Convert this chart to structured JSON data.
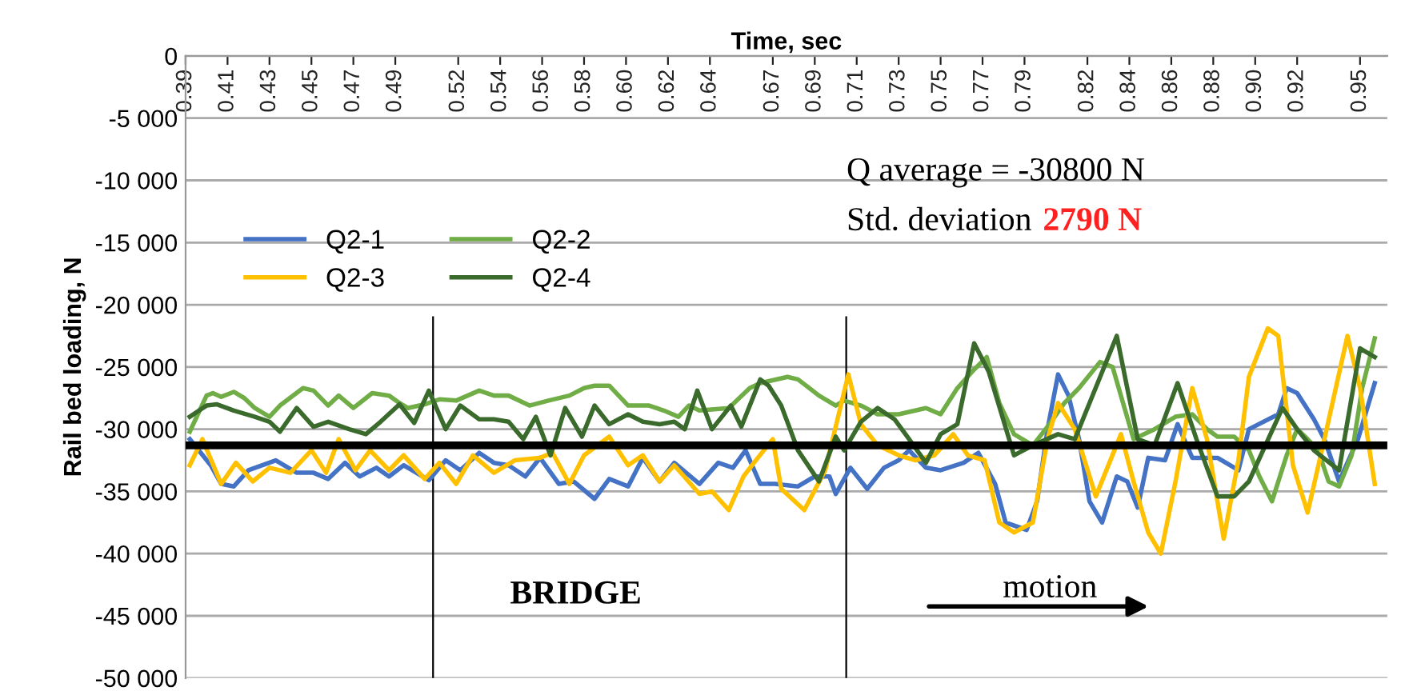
{
  "chart_data": {
    "type": "line",
    "xlabel": "Time, sec",
    "ylabel": "Rail bed loading, N",
    "xlim": [
      0.39,
      0.963
    ],
    "xticks": [
      0.39,
      0.41,
      0.43,
      0.45,
      0.47,
      0.49,
      0.52,
      0.54,
      0.56,
      0.58,
      {
        "value": 0.6,
        "label": "0.60"
      },
      0.62,
      0.64,
      0.67,
      0.69,
      0.71,
      0.73,
      0.75,
      0.77,
      0.79,
      0.82,
      0.84,
      0.86,
      0.88,
      {
        "value": 0.9,
        "label": "0.90"
      },
      0.92,
      0.95
    ],
    "ylim": [
      -50000,
      0
    ],
    "yticks": [
      0,
      {
        "value": -5000,
        "label": "-5 000"
      },
      {
        "value": -10000,
        "label": "-10 000"
      },
      {
        "value": -15000,
        "label": "-15 000"
      },
      {
        "value": -20000,
        "label": "-20 000"
      },
      {
        "value": -25000,
        "label": "-25 000"
      },
      {
        "value": -30000,
        "label": "-30 000"
      },
      {
        "value": -35000,
        "label": "-35 000"
      },
      {
        "value": -40000,
        "label": "-40 000"
      },
      {
        "value": -45000,
        "label": "-45 000"
      },
      {
        "value": -50000,
        "label": "-50 000"
      }
    ],
    "grid": "y",
    "legend": "top left",
    "series": [
      {
        "name": "Q2-1",
        "color": "#4472c4",
        "x": [
          0.392,
          0.402,
          0.407,
          0.413,
          0.42,
          0.433,
          0.443,
          0.451,
          0.458,
          0.466,
          0.473,
          0.481,
          0.487,
          0.494,
          0.506,
          0.514,
          0.521,
          0.53,
          0.537,
          0.544,
          0.552,
          0.559,
          0.568,
          0.575,
          0.585,
          0.592,
          0.601,
          0.608,
          0.616,
          0.623,
          0.635,
          0.644,
          0.651,
          0.657,
          0.664,
          0.671,
          0.682,
          0.69,
          0.697,
          0.7,
          0.707,
          0.715,
          0.723,
          0.73,
          0.735,
          0.743,
          0.75,
          0.761,
          0.768,
          0.776,
          0.781,
          0.791,
          0.796,
          0.801,
          0.806,
          0.811,
          0.816,
          0.821,
          0.827,
          0.834,
          0.839,
          0.844,
          0.849,
          0.857,
          0.863,
          0.87,
          0.882,
          0.892,
          0.897,
          0.911,
          0.915,
          0.92,
          0.928,
          0.933,
          0.94,
          0.949,
          0.957
        ],
        "values": [
          -30800,
          -32900,
          -34400,
          -34600,
          -33300,
          -32500,
          -33500,
          -33500,
          -34000,
          -32700,
          -33800,
          -33100,
          -33800,
          -32900,
          -34100,
          -32500,
          -33300,
          -31900,
          -32700,
          -32900,
          -33800,
          -32300,
          -34400,
          -34200,
          -35600,
          -34000,
          -34600,
          -32300,
          -34200,
          -32700,
          -34400,
          -32700,
          -33100,
          -31700,
          -34400,
          -34400,
          -34600,
          -33800,
          -33800,
          -35200,
          -33100,
          -34800,
          -33100,
          -32500,
          -31700,
          -33100,
          -33300,
          -32700,
          -31900,
          -34400,
          -37500,
          -38100,
          -35800,
          -30000,
          -25600,
          -27300,
          -30800,
          -35800,
          -37500,
          -33800,
          -34200,
          -36300,
          -32300,
          -32500,
          -29600,
          -32300,
          -32300,
          -33300,
          -30000,
          -28800,
          -26700,
          -27100,
          -29200,
          -30800,
          -34200,
          -30800,
          -26300
        ]
      },
      {
        "name": "Q2-2",
        "color": "#70ad47",
        "x": [
          0.392,
          0.4,
          0.403,
          0.407,
          0.413,
          0.418,
          0.423,
          0.43,
          0.435,
          0.446,
          0.451,
          0.458,
          0.463,
          0.47,
          0.479,
          0.487,
          0.492,
          0.496,
          0.504,
          0.511,
          0.519,
          0.53,
          0.537,
          0.544,
          0.554,
          0.563,
          0.573,
          0.58,
          0.585,
          0.592,
          0.601,
          0.611,
          0.618,
          0.625,
          0.63,
          0.635,
          0.649,
          0.659,
          0.664,
          0.677,
          0.682,
          0.692,
          0.7,
          0.704,
          0.712,
          0.72,
          0.73,
          0.743,
          0.75,
          0.758,
          0.766,
          0.772,
          0.778,
          0.785,
          0.794,
          0.801,
          0.809,
          0.816,
          0.826,
          0.832,
          0.837,
          0.842,
          0.852,
          0.862,
          0.87,
          0.877,
          0.882,
          0.89,
          0.897,
          0.902,
          0.908,
          0.915,
          0.92,
          0.925,
          0.93,
          0.935,
          0.94,
          0.946,
          0.951,
          0.957
        ],
        "values": [
          -30200,
          -27300,
          -27100,
          -27400,
          -27000,
          -27500,
          -28300,
          -29000,
          -28100,
          -26700,
          -26900,
          -28100,
          -27300,
          -28300,
          -27100,
          -27300,
          -27900,
          -28300,
          -28000,
          -27600,
          -27700,
          -26900,
          -27300,
          -27300,
          -28100,
          -27700,
          -27300,
          -26700,
          -26500,
          -26500,
          -28100,
          -28100,
          -28500,
          -29000,
          -28100,
          -28500,
          -28300,
          -26700,
          -26300,
          -25800,
          -26000,
          -27300,
          -28100,
          -27700,
          -28100,
          -28800,
          -28800,
          -28300,
          -28800,
          -26700,
          -25200,
          -24200,
          -27900,
          -30400,
          -31300,
          -29800,
          -27900,
          -26700,
          -24600,
          -25000,
          -27900,
          -30800,
          -30000,
          -29000,
          -28800,
          -30000,
          -30600,
          -30600,
          -31700,
          -33800,
          -35800,
          -32100,
          -30000,
          -30800,
          -31700,
          -34200,
          -34600,
          -32100,
          -26700,
          -22700
        ]
      },
      {
        "name": "Q2-3",
        "color": "#ffc000",
        "x": [
          0.392,
          0.398,
          0.407,
          0.414,
          0.422,
          0.43,
          0.44,
          0.45,
          0.457,
          0.463,
          0.471,
          0.478,
          0.487,
          0.494,
          0.504,
          0.511,
          0.519,
          0.527,
          0.537,
          0.547,
          0.559,
          0.565,
          0.573,
          0.58,
          0.592,
          0.601,
          0.608,
          0.616,
          0.623,
          0.635,
          0.641,
          0.649,
          0.656,
          0.661,
          0.67,
          0.674,
          0.685,
          0.695,
          0.706,
          0.712,
          0.72,
          0.73,
          0.738,
          0.747,
          0.756,
          0.763,
          0.771,
          0.778,
          0.785,
          0.794,
          0.801,
          0.806,
          0.814,
          0.824,
          0.836,
          0.842,
          0.849,
          0.855,
          0.862,
          0.87,
          0.877,
          0.885,
          0.892,
          0.897,
          0.906,
          0.911,
          0.918,
          0.925,
          0.933,
          0.944,
          0.95,
          0.957
        ],
        "values": [
          -32900,
          -30800,
          -34400,
          -32700,
          -34200,
          -33100,
          -33500,
          -31700,
          -33500,
          -30800,
          -33300,
          -31700,
          -33300,
          -32100,
          -34000,
          -32700,
          -34400,
          -32100,
          -33500,
          -32500,
          -32300,
          -31900,
          -34400,
          -32100,
          -30600,
          -32900,
          -32100,
          -34200,
          -32900,
          -35200,
          -35000,
          -36500,
          -33800,
          -32700,
          -30800,
          -34800,
          -36500,
          -33300,
          -25600,
          -29600,
          -31300,
          -32100,
          -32500,
          -32100,
          -30400,
          -32100,
          -32500,
          -37500,
          -38300,
          -37500,
          -30800,
          -27900,
          -30000,
          -35400,
          -30400,
          -34200,
          -38300,
          -40000,
          -34200,
          -26700,
          -30800,
          -38800,
          -32500,
          -25800,
          -21900,
          -22500,
          -32900,
          -36700,
          -30800,
          -22500,
          -26700,
          -34400
        ]
      },
      {
        "name": "Q2-4",
        "color": "#3b6b2c",
        "x": [
          0.392,
          0.4,
          0.405,
          0.413,
          0.423,
          0.43,
          0.435,
          0.443,
          0.451,
          0.458,
          0.468,
          0.476,
          0.483,
          0.492,
          0.499,
          0.506,
          0.514,
          0.521,
          0.53,
          0.537,
          0.544,
          0.551,
          0.557,
          0.564,
          0.571,
          0.579,
          0.585,
          0.592,
          0.601,
          0.608,
          0.616,
          0.623,
          0.628,
          0.634,
          0.641,
          0.65,
          0.655,
          0.664,
          0.668,
          0.674,
          0.682,
          0.692,
          0.7,
          0.704,
          0.712,
          0.72,
          0.728,
          0.735,
          0.743,
          0.75,
          0.758,
          0.766,
          0.773,
          0.785,
          0.794,
          0.806,
          0.814,
          0.821,
          0.834,
          0.839,
          0.844,
          0.852,
          0.863,
          0.872,
          0.882,
          0.89,
          0.897,
          0.913,
          0.92,
          0.928,
          0.94,
          0.95,
          0.957
        ],
        "values": [
          -29000,
          -28100,
          -28000,
          -28500,
          -29000,
          -29400,
          -30200,
          -28300,
          -29800,
          -29400,
          -30000,
          -30400,
          -29400,
          -28000,
          -29500,
          -26900,
          -30000,
          -28100,
          -29200,
          -29200,
          -29400,
          -30800,
          -29000,
          -32100,
          -28300,
          -30600,
          -28100,
          -29600,
          -28800,
          -29400,
          -29600,
          -29400,
          -30000,
          -26900,
          -30000,
          -28100,
          -29800,
          -26000,
          -26500,
          -28100,
          -31700,
          -34200,
          -30600,
          -31700,
          -29400,
          -28300,
          -29200,
          -30800,
          -32700,
          -30400,
          -29600,
          -23100,
          -25400,
          -32100,
          -31300,
          -30400,
          -30800,
          -27900,
          -22500,
          -26700,
          -30800,
          -31300,
          -26300,
          -30800,
          -35400,
          -35400,
          -34200,
          -28300,
          -30000,
          -31700,
          -33300,
          -23500,
          -24200
        ]
      }
    ],
    "ref_lines": [
      {
        "axis": "y",
        "value": -31300,
        "color": "#000000"
      },
      {
        "axis": "x",
        "value": 0.508,
        "color": "#000000"
      },
      {
        "axis": "x",
        "value": 0.705,
        "color": "#000000"
      }
    ],
    "annotations": [
      "Q average = -30800 N",
      "Std. deviation",
      "2790 N",
      "BRIDGE",
      "motion"
    ]
  }
}
